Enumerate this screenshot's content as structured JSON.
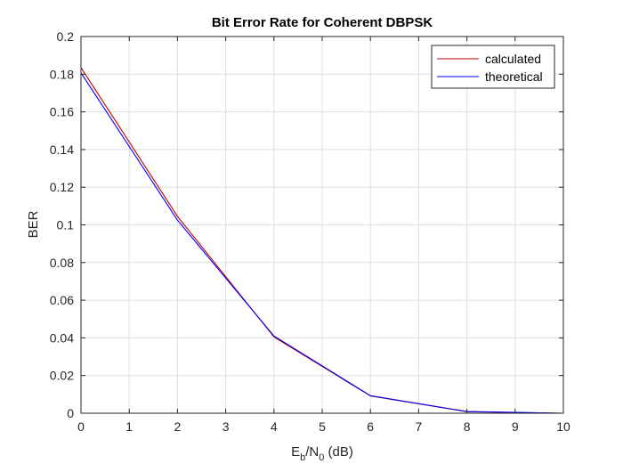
{
  "chart_data": {
    "type": "line",
    "title": "Bit Error Rate for Coherent DBPSK",
    "xlabel": {
      "base": "E",
      "sub1": "b",
      "mid": "/N",
      "sub2": "0",
      "tail": " (dB)"
    },
    "ylabel": "BER",
    "xlim": [
      0,
      10
    ],
    "ylim": [
      0,
      0.2
    ],
    "xticks": [
      0,
      1,
      2,
      3,
      4,
      5,
      6,
      7,
      8,
      9,
      10
    ],
    "yticks": [
      0,
      0.02,
      0.04,
      0.06,
      0.08,
      0.1,
      0.12,
      0.14,
      0.16,
      0.18,
      0.2
    ],
    "xtick_labels": [
      "0",
      "1",
      "2",
      "3",
      "4",
      "5",
      "6",
      "7",
      "8",
      "9",
      "10"
    ],
    "ytick_labels": [
      "0",
      "0.02",
      "0.04",
      "0.06",
      "0.08",
      "0.1",
      "0.12",
      "0.14",
      "0.16",
      "0.18",
      "0.2"
    ],
    "grid": true,
    "legend_position": "top-right",
    "series": [
      {
        "name": "calculated",
        "color": "#c00000",
        "x": [
          0,
          2,
          4,
          6,
          8,
          10
        ],
        "y": [
          0.1835,
          0.1045,
          0.0405,
          0.0092,
          0.0008,
          0.0
        ]
      },
      {
        "name": "theoretical",
        "color": "#0000ff",
        "x": [
          0,
          2,
          4,
          6,
          8,
          10
        ],
        "y": [
          0.1807,
          0.1025,
          0.041,
          0.0093,
          0.0009,
          0.0
        ]
      }
    ]
  }
}
